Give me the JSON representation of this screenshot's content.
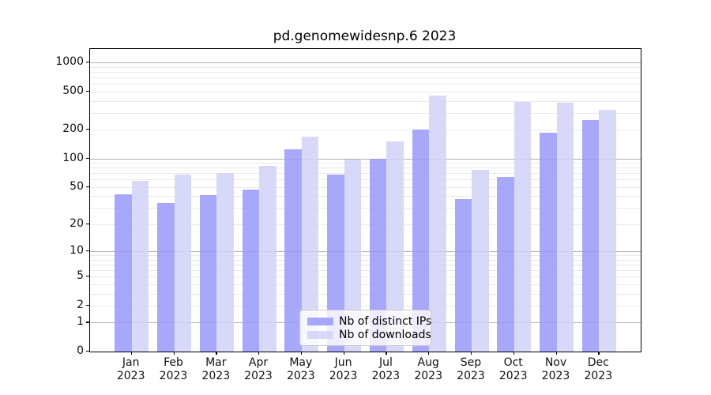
{
  "chart_data": {
    "type": "bar",
    "title": "pd.genomewidesnp.6 2023",
    "yscale": "log1p",
    "ylim": [
      0,
      1380
    ],
    "yticks": [
      1000,
      500,
      200,
      100,
      50,
      20,
      10,
      5,
      2,
      1,
      0
    ],
    "grid": "on",
    "legend_position": "lower center inside plot",
    "x_labels": [
      {
        "line1": "Jan",
        "line2": "2023"
      },
      {
        "line1": "Feb",
        "line2": "2023"
      },
      {
        "line1": "Mar",
        "line2": "2023"
      },
      {
        "line1": "Apr",
        "line2": "2023"
      },
      {
        "line1": "May",
        "line2": "2023"
      },
      {
        "line1": "Jun",
        "line2": "2023"
      },
      {
        "line1": "Jul",
        "line2": "2023"
      },
      {
        "line1": "Aug",
        "line2": "2023"
      },
      {
        "line1": "Sep",
        "line2": "2023"
      },
      {
        "line1": "Oct",
        "line2": "2023"
      },
      {
        "line1": "Nov",
        "line2": "2023"
      },
      {
        "line1": "Dec",
        "line2": "2023"
      }
    ],
    "series": [
      {
        "name": "Nb of distinct IPs",
        "color": "#9999fa",
        "opacity": 0.85,
        "values": [
          42,
          34,
          41,
          47,
          125,
          68,
          100,
          200,
          37,
          64,
          185,
          250
        ]
      },
      {
        "name": "Nb of downloads",
        "color": "#d1d1f7",
        "opacity": 0.85,
        "values": [
          58,
          68,
          70,
          83,
          170,
          98,
          150,
          450,
          76,
          390,
          380,
          320
        ]
      }
    ]
  },
  "colors": {
    "grid_major": "#b0b0b0",
    "grid_minor": "#e9e9e9",
    "spine": "#000000",
    "text": "#111111",
    "legend_border": "#c9c9c9"
  }
}
